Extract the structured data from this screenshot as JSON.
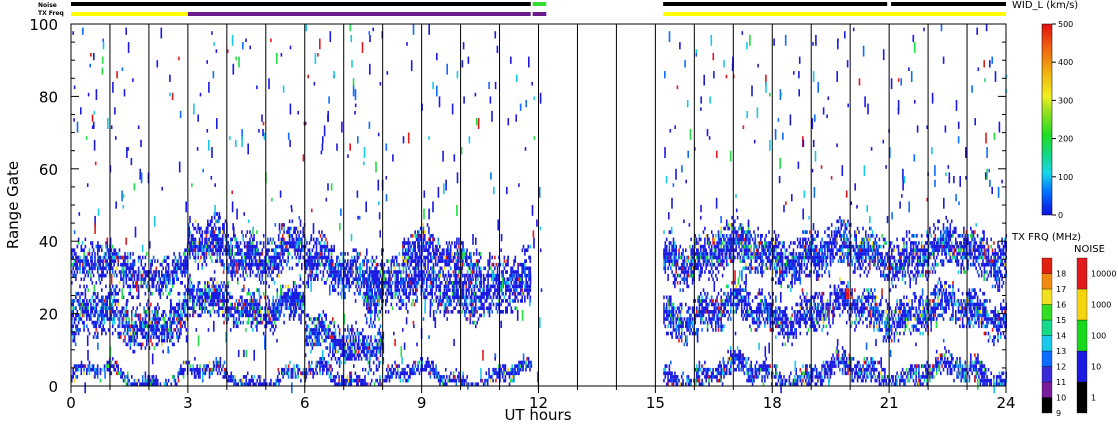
{
  "chart_data": {
    "type": "heatmap",
    "xlabel": "UT hours",
    "ylabel": "Range Gate",
    "xlim": [
      0,
      24
    ],
    "ylim": [
      0,
      100
    ],
    "x_ticks": [
      "0",
      "3",
      "6",
      "9",
      "12",
      "15",
      "18",
      "21",
      "24"
    ],
    "y_ticks": [
      "0",
      "20",
      "40",
      "60",
      "80",
      "100"
    ],
    "grid": "vertical hourly lines",
    "no_data_interval_hours": [
      12.1,
      15.2
    ],
    "status_bars": {
      "noise_label": "Noise",
      "txfreq_label": "TX Freq",
      "noise_segments": [
        {
          "start": 0.0,
          "end": 11.8,
          "color": "#000000"
        },
        {
          "start": 11.85,
          "end": 12.2,
          "color": "#33dd33"
        },
        {
          "start": 15.2,
          "end": 20.95,
          "color": "#000000"
        },
        {
          "start": 21.05,
          "end": 24.0,
          "color": "#000000"
        }
      ],
      "txfreq_segments": [
        {
          "start": 0.0,
          "end": 3.0,
          "color": "#ffff00"
        },
        {
          "start": 3.0,
          "end": 11.8,
          "color": "#6a1a8a"
        },
        {
          "start": 11.85,
          "end": 12.2,
          "color": "#6a1a8a"
        },
        {
          "start": 15.2,
          "end": 24.0,
          "color": "#ffff00"
        }
      ]
    },
    "scatter_bands": [
      {
        "start": 0.0,
        "end": 3.0,
        "center": 32,
        "width": 5
      },
      {
        "start": 0.0,
        "end": 3.0,
        "center": 18,
        "width": 6
      },
      {
        "start": 3.0,
        "end": 6.0,
        "center": 37,
        "width": 6
      },
      {
        "start": 3.0,
        "end": 6.0,
        "center": 22,
        "width": 5
      },
      {
        "start": 6.0,
        "end": 8.0,
        "center": 32,
        "width": 6
      },
      {
        "start": 6.0,
        "end": 8.0,
        "center": 12,
        "width": 5
      },
      {
        "start": 7.5,
        "end": 11.8,
        "center": 27,
        "width": 7
      },
      {
        "start": 8.5,
        "end": 10.5,
        "center": 36,
        "width": 4
      },
      {
        "start": 0.0,
        "end": 11.8,
        "center": 2,
        "width": 2
      },
      {
        "start": 15.2,
        "end": 24.0,
        "center": 36,
        "width": 6
      },
      {
        "start": 15.2,
        "end": 24.0,
        "center": 20,
        "width": 5
      },
      {
        "start": 15.2,
        "end": 24.0,
        "center": 3,
        "width": 3
      }
    ],
    "colorbars": [
      {
        "label": "WID_L (km/s)",
        "ticks": [
          "0",
          "100",
          "200",
          "300",
          "400",
          "500"
        ]
      },
      {
        "label": "TX FRQ (MHz)",
        "ticks": [
          "9",
          "10",
          "11",
          "12",
          "13",
          "14",
          "15",
          "16",
          "17",
          "18"
        ],
        "colors": [
          "#000000",
          "#7a1d9a",
          "#3b2bd6",
          "#0b6cff",
          "#18c8e8",
          "#18d88a",
          "#33dd22",
          "#f0e020",
          "#f08a10",
          "#e02010"
        ]
      },
      {
        "label": "NOISE",
        "ticks": [
          "1",
          "10",
          "100",
          "1000",
          "10000"
        ],
        "colors": [
          "#000000",
          "#1a1ae0",
          "#19d81c",
          "#f5d410",
          "#e31a1c"
        ]
      }
    ]
  }
}
